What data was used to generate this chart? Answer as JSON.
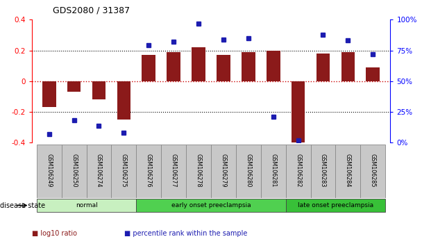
{
  "title": "GDS2080 / 31387",
  "samples": [
    "GSM106249",
    "GSM106250",
    "GSM106274",
    "GSM106275",
    "GSM106276",
    "GSM106277",
    "GSM106278",
    "GSM106279",
    "GSM106280",
    "GSM106281",
    "GSM106282",
    "GSM106283",
    "GSM106284",
    "GSM106285"
  ],
  "log10_ratio": [
    -0.17,
    -0.07,
    -0.12,
    -0.25,
    0.17,
    0.19,
    0.22,
    0.17,
    0.19,
    0.2,
    -0.42,
    0.18,
    0.19,
    0.09
  ],
  "percentile_rank": [
    7,
    18,
    14,
    8,
    79,
    82,
    97,
    84,
    85,
    21,
    2,
    88,
    83,
    72
  ],
  "bar_color": "#8B1A1A",
  "dot_color": "#1C1CB0",
  "ylim_left": [
    -0.4,
    0.4
  ],
  "ylim_right": [
    0,
    100
  ],
  "yticks_left": [
    -0.4,
    -0.2,
    0.0,
    0.2,
    0.4
  ],
  "ytick_labels_left": [
    "-0.4",
    "-0.2",
    "0",
    "0.2",
    "0.4"
  ],
  "yticks_right": [
    0,
    25,
    50,
    75,
    100
  ],
  "ytick_labels_right": [
    "0%",
    "25%",
    "50%",
    "75%",
    "100%"
  ],
  "groups": [
    {
      "label": "normal",
      "start": 0,
      "end": 4,
      "color": "#c8f0c0"
    },
    {
      "label": "early onset preeclampsia",
      "start": 4,
      "end": 10,
      "color": "#50d050"
    },
    {
      "label": "late onset preeclampsia",
      "start": 10,
      "end": 14,
      "color": "#38c038"
    }
  ],
  "disease_state_label": "disease state",
  "legend_bar_label": "log10 ratio",
  "legend_dot_label": "percentile rank within the sample",
  "background_color": "#ffffff",
  "zero_line_color": "#cc0000",
  "sample_box_color": "#c8c8c8"
}
